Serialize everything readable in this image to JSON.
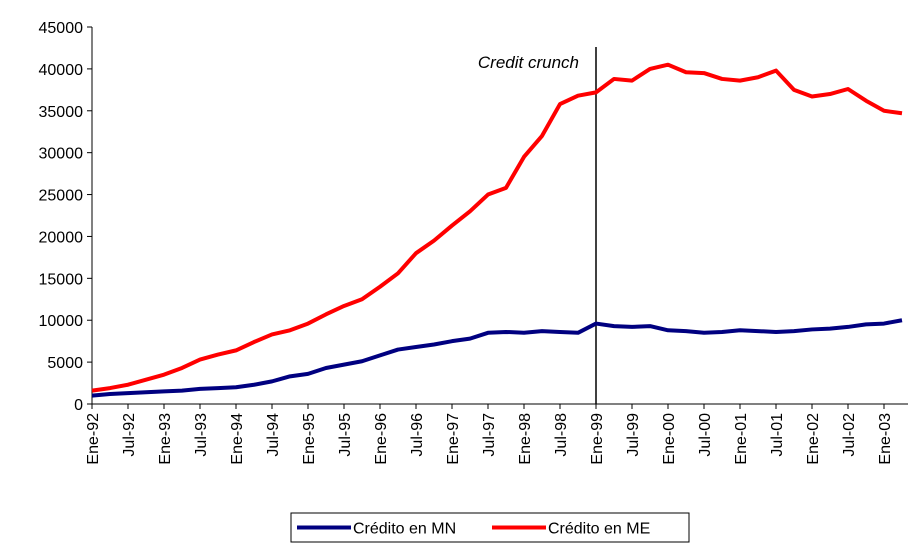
{
  "chart_data": {
    "type": "line",
    "categories": [
      "Ene-92",
      null,
      "Jul-92",
      null,
      "Ene-93",
      null,
      "Jul-93",
      null,
      "Ene-94",
      null,
      "Jul-94",
      null,
      "Ene-95",
      null,
      "Jul-95",
      null,
      "Ene-96",
      null,
      "Jul-96",
      null,
      "Ene-97",
      null,
      "Jul-97",
      null,
      "Ene-98",
      null,
      "Jul-98",
      null,
      "Ene-99",
      null,
      "Jul-99",
      null,
      "Ene-00",
      null,
      "Jul-00",
      null,
      "Ene-01",
      null,
      "Jul-01",
      null,
      "Ene-02",
      null,
      "Jul-02",
      null,
      "Ene-03",
      null
    ],
    "series": [
      {
        "name": "Crédito en MN",
        "color": "#000080",
        "values": [
          1000,
          1200,
          1300,
          1400,
          1500,
          1600,
          1800,
          1900,
          2000,
          2300,
          2700,
          3300,
          3600,
          4300,
          4700,
          5100,
          5800,
          6500,
          6800,
          7100,
          7500,
          7800,
          8500,
          8600,
          8500,
          8700,
          8600,
          8500,
          9600,
          9300,
          9200,
          9300,
          8800,
          8700,
          8500,
          8600,
          8800,
          8700,
          8600,
          8700,
          8900,
          9000,
          9200,
          9500,
          9600,
          10000
        ]
      },
      {
        "name": "Crédito en ME",
        "color": "#ff0000",
        "values": [
          1600,
          1900,
          2300,
          2900,
          3500,
          4300,
          5300,
          5900,
          6400,
          7400,
          8300,
          8800,
          9600,
          10700,
          11700,
          12500,
          14000,
          15600,
          18000,
          19500,
          21300,
          23000,
          25000,
          25800,
          29500,
          32000,
          35800,
          36800,
          37200,
          38800,
          38600,
          40000,
          40500,
          39600,
          39500,
          38800,
          38600,
          39000,
          39800,
          37500,
          36700,
          37000,
          37600,
          36200,
          35000,
          34700
        ]
      }
    ],
    "ylim": [
      0,
      45000
    ],
    "yticks": [
      0,
      5000,
      10000,
      15000,
      20000,
      25000,
      30000,
      35000,
      40000,
      45000
    ],
    "annotation": {
      "text": "Credit crunch",
      "x": "Ene-99"
    },
    "legend": "bottom"
  }
}
